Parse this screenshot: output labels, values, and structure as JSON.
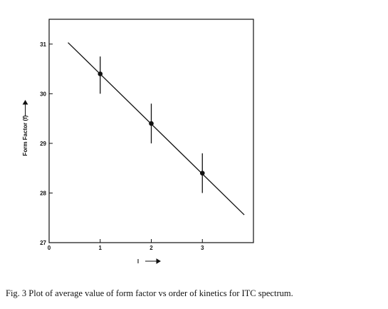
{
  "chart_data": {
    "type": "scatter",
    "title": "",
    "xlabel": "l",
    "ylabel": "Form Factor (f)",
    "xlim": [
      0,
      4
    ],
    "ylim": [
      27,
      31.5
    ],
    "xticks": [
      0,
      1,
      2,
      3
    ],
    "yticks": [
      27,
      28,
      29,
      30,
      31
    ],
    "grid": false,
    "legend": "none",
    "series": [
      {
        "points": [
          {
            "x": 1,
            "y": 30.4,
            "err_low": 30.0,
            "err_high": 30.75
          },
          {
            "x": 2,
            "y": 29.4,
            "err_low": 29.0,
            "err_high": 29.8
          },
          {
            "x": 3,
            "y": 28.4,
            "err_low": 28.0,
            "err_high": 28.8
          }
        ]
      }
    ],
    "fit_line": {
      "x": [
        0.37,
        3.82
      ],
      "y": [
        31.03,
        27.56
      ]
    },
    "colors": {
      "ink": "#111111"
    }
  },
  "caption": "Fig. 3   Plot of average value of form factor vs order of kinetics for ITC spectrum."
}
